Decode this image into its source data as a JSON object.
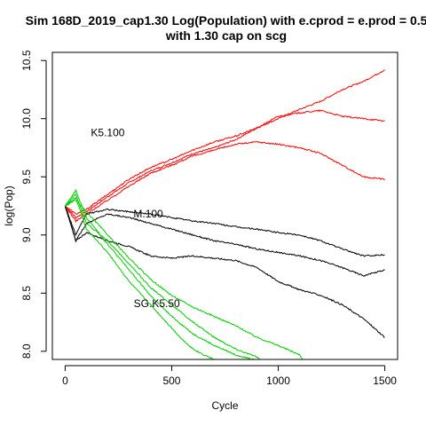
{
  "chart_data": {
    "type": "line",
    "title_line1": "Sim 168D_2019_cap1.30 Log(Population) with e.cprod = e.prod = 0.5",
    "title_line2": "with 1.30 cap on scg",
    "xlabel": "Cycle",
    "ylabel": "log(Pop)",
    "xlim": [
      -60,
      1560
    ],
    "ylim": [
      7.93,
      10.57
    ],
    "x_ticks": [
      0,
      500,
      1000,
      1500
    ],
    "y_ticks": [
      8.0,
      8.5,
      9.0,
      9.5,
      10.0,
      10.5
    ],
    "x_tick_labels": [
      "0",
      "500",
      "1000",
      "1500"
    ],
    "y_tick_labels": [
      "8.0",
      "8.5",
      "9.0",
      "9.5",
      "10.0",
      "10.5"
    ],
    "grid": false,
    "annotations": [
      {
        "text": "K5.100",
        "x": 200,
        "y": 9.88
      },
      {
        "text": "M.100",
        "x": 390,
        "y": 9.18
      },
      {
        "text": "SG.K5.50",
        "x": 430,
        "y": 8.41
      }
    ],
    "colors": {
      "K5.100": "#ff0000",
      "M.100": "#000000",
      "SG.K5.50": "#00cc00"
    },
    "series": [
      {
        "group": "K5.100",
        "color": "#ff0000",
        "x": [
          0,
          50,
          100,
          200,
          300,
          400,
          500,
          600,
          700,
          800,
          900,
          1000,
          1100,
          1200,
          1300,
          1400,
          1500
        ],
        "values": [
          9.25,
          9.15,
          9.2,
          9.33,
          9.45,
          9.55,
          9.62,
          9.7,
          9.75,
          9.82,
          9.92,
          10.0,
          10.08,
          10.15,
          10.25,
          10.32,
          10.42
        ]
      },
      {
        "group": "K5.100",
        "color": "#ff0000",
        "x": [
          0,
          50,
          100,
          200,
          300,
          400,
          500,
          600,
          700,
          800,
          900,
          1000,
          1100,
          1200,
          1300,
          1400,
          1500
        ],
        "values": [
          9.25,
          9.18,
          9.22,
          9.35,
          9.48,
          9.58,
          9.65,
          9.73,
          9.8,
          9.85,
          9.92,
          10.02,
          10.05,
          10.07,
          10.02,
          10.0,
          9.98
        ]
      },
      {
        "group": "K5.100",
        "color": "#ff0000",
        "x": [
          0,
          50,
          100,
          200,
          300,
          400,
          500,
          600,
          700,
          800,
          900,
          1000,
          1100,
          1200,
          1300,
          1400,
          1500
        ],
        "values": [
          9.25,
          9.12,
          9.18,
          9.3,
          9.42,
          9.53,
          9.6,
          9.68,
          9.73,
          9.78,
          9.8,
          9.78,
          9.75,
          9.7,
          9.6,
          9.5,
          9.48
        ]
      },
      {
        "group": "M.100",
        "color": "#000000",
        "x": [
          0,
          50,
          100,
          200,
          300,
          400,
          500,
          600,
          700,
          800,
          900,
          1000,
          1100,
          1200,
          1300,
          1400,
          1500
        ],
        "values": [
          9.25,
          9.0,
          9.18,
          9.22,
          9.2,
          9.18,
          9.15,
          9.12,
          9.1,
          9.07,
          9.05,
          9.02,
          9.0,
          8.95,
          8.88,
          8.82,
          8.83
        ]
      },
      {
        "group": "M.100",
        "color": "#000000",
        "x": [
          0,
          50,
          100,
          200,
          300,
          400,
          500,
          600,
          700,
          800,
          900,
          1000,
          1100,
          1200,
          1300,
          1400,
          1500
        ],
        "values": [
          9.25,
          8.95,
          9.1,
          9.18,
          9.15,
          9.1,
          9.05,
          9.0,
          8.95,
          8.92,
          8.88,
          8.85,
          8.82,
          8.78,
          8.72,
          8.65,
          8.7
        ]
      },
      {
        "group": "M.100",
        "color": "#000000",
        "x": [
          0,
          50,
          100,
          200,
          300,
          400,
          500,
          600,
          700,
          800,
          900,
          1000,
          1100,
          1200,
          1300,
          1400,
          1500
        ],
        "values": [
          9.25,
          8.95,
          9.02,
          8.95,
          8.9,
          8.82,
          8.8,
          8.82,
          8.8,
          8.78,
          8.72,
          8.6,
          8.53,
          8.48,
          8.4,
          8.28,
          8.12
        ]
      },
      {
        "group": "SG.K5.50",
        "color": "#00cc00",
        "x": [
          0,
          50,
          100,
          200,
          300,
          400,
          500,
          600,
          700,
          800,
          900,
          1000,
          1100,
          1120
        ],
        "values": [
          9.25,
          9.3,
          9.2,
          9.0,
          8.8,
          8.62,
          8.48,
          8.38,
          8.3,
          8.22,
          8.12,
          8.05,
          7.97,
          7.92
        ]
      },
      {
        "group": "SG.K5.50",
        "color": "#00cc00",
        "x": [
          0,
          50,
          100,
          200,
          300,
          400,
          500,
          600,
          700,
          800,
          900,
          920
        ],
        "values": [
          9.25,
          9.35,
          9.1,
          8.95,
          8.75,
          8.55,
          8.4,
          8.25,
          8.12,
          8.02,
          7.95,
          7.92
        ]
      },
      {
        "group": "SG.K5.50",
        "color": "#00cc00",
        "x": [
          0,
          50,
          100,
          200,
          300,
          400,
          500,
          600,
          700,
          800,
          900
        ],
        "values": [
          9.25,
          9.38,
          9.15,
          8.92,
          8.7,
          8.48,
          8.3,
          8.15,
          8.05,
          7.97,
          7.92
        ]
      },
      {
        "group": "SG.K5.50",
        "color": "#00cc00",
        "x": [
          0,
          50,
          100,
          200,
          300,
          400,
          500,
          550,
          600,
          650,
          700,
          710
        ],
        "values": [
          9.25,
          9.32,
          9.05,
          8.85,
          8.6,
          8.4,
          8.2,
          8.1,
          8.02,
          7.97,
          7.93,
          7.92
        ]
      }
    ]
  }
}
